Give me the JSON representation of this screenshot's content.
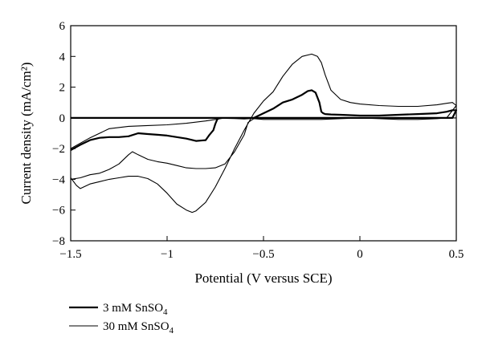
{
  "chart_data": {
    "type": "line",
    "title": "",
    "xlabel": "Potential (V versus SCE)",
    "ylabel": "Current density (mA/cm²)",
    "xlim": [
      -1.5,
      0.5
    ],
    "ylim": [
      -8,
      6
    ],
    "x_ticks": [
      -1.5,
      -1,
      -0.5,
      0,
      0.5
    ],
    "x_tick_labels": [
      "−1.5",
      "−1",
      "−0.5",
      "0",
      "0.5"
    ],
    "y_ticks": [
      -8,
      -6,
      -4,
      -2,
      0,
      2,
      4,
      6
    ],
    "y_tick_labels": [
      "−8",
      "−6",
      "−4",
      "−2",
      "0",
      "2",
      "4",
      "6"
    ],
    "grid": false,
    "legend_position": "bottom-left, below plot",
    "series": [
      {
        "name": "3 mM SnSO4",
        "legend_main": "3 mM SnSO",
        "legend_sub": "4",
        "line_width": "thick",
        "color": "#000000",
        "x": [
          -1.5,
          -1.45,
          -1.4,
          -1.35,
          -1.3,
          -1.25,
          -1.2,
          -1.15,
          -1.1,
          -1.05,
          -1.0,
          -0.95,
          -0.9,
          -0.85,
          -0.8,
          -0.78,
          -0.76,
          -0.75,
          -0.74,
          -0.73,
          -0.7,
          -0.65,
          -0.6,
          -0.55,
          -0.5,
          -0.45,
          -0.4,
          -0.35,
          -0.3,
          -0.27,
          -0.25,
          -0.23,
          -0.21,
          -0.2,
          -0.19,
          -0.18,
          -0.15,
          -0.1,
          0.0,
          0.1,
          0.2,
          0.3,
          0.4,
          0.45,
          0.48,
          0.5,
          0.48,
          0.4,
          0.3,
          0.2,
          0.0,
          -0.2,
          -0.4,
          -0.6,
          -0.8,
          -1.0,
          -1.2,
          -1.4,
          -1.5
        ],
        "y": [
          -2.1,
          -1.75,
          -1.45,
          -1.3,
          -1.25,
          -1.25,
          -1.2,
          -1.0,
          -1.05,
          -1.1,
          -1.15,
          -1.25,
          -1.35,
          -1.5,
          -1.45,
          -1.1,
          -0.8,
          -0.4,
          -0.1,
          0.0,
          0.0,
          -0.02,
          -0.04,
          0.0,
          0.3,
          0.6,
          1.0,
          1.2,
          1.5,
          1.75,
          1.8,
          1.65,
          1.0,
          0.4,
          0.3,
          0.25,
          0.22,
          0.2,
          0.15,
          0.15,
          0.2,
          0.25,
          0.3,
          0.4,
          0.5,
          0.5,
          0.0,
          0.0,
          0.0,
          0.0,
          0.0,
          0.0,
          0.0,
          0.0,
          0.0,
          0.0,
          0.0,
          0.0,
          0.0
        ]
      },
      {
        "name": "30 mM SnSO4",
        "legend_main": "30 mM SnSO",
        "legend_sub": "4",
        "line_width": "thin",
        "color": "#000000",
        "x": [
          -1.5,
          -1.47,
          -1.45,
          -1.4,
          -1.35,
          -1.3,
          -1.25,
          -1.2,
          -1.15,
          -1.1,
          -1.05,
          -1.0,
          -0.95,
          -0.9,
          -0.87,
          -0.85,
          -0.8,
          -0.75,
          -0.7,
          -0.65,
          -0.6,
          -0.55,
          -0.5,
          -0.45,
          -0.4,
          -0.35,
          -0.3,
          -0.25,
          -0.22,
          -0.2,
          -0.18,
          -0.15,
          -0.1,
          -0.05,
          0.0,
          0.1,
          0.2,
          0.3,
          0.4,
          0.45,
          0.48,
          0.5,
          0.45,
          0.4,
          0.3,
          0.2,
          0.1,
          0.0,
          -0.1,
          -0.2,
          -0.3,
          -0.4,
          -0.5,
          -0.55,
          -0.58,
          -0.6,
          -0.65,
          -0.7,
          -0.75,
          -0.8,
          -0.85,
          -0.9,
          -0.95,
          -1.0,
          -1.05,
          -1.1,
          -1.15,
          -1.18,
          -1.2,
          -1.25,
          -1.3,
          -1.35,
          -1.4,
          -1.45,
          -1.5
        ],
        "y": [
          -3.9,
          -4.4,
          -4.6,
          -4.3,
          -4.15,
          -4.0,
          -3.9,
          -3.8,
          -3.8,
          -3.95,
          -4.3,
          -4.9,
          -5.6,
          -6.0,
          -6.15,
          -6.05,
          -5.5,
          -4.5,
          -3.3,
          -2.0,
          -0.8,
          0.3,
          1.1,
          1.7,
          2.7,
          3.5,
          4.0,
          4.15,
          4.0,
          3.6,
          2.8,
          1.8,
          1.2,
          1.0,
          0.9,
          0.8,
          0.75,
          0.75,
          0.85,
          0.95,
          1.0,
          0.8,
          0.0,
          -0.05,
          -0.1,
          -0.1,
          -0.05,
          0.0,
          -0.05,
          -0.1,
          -0.1,
          -0.1,
          -0.1,
          -0.05,
          -0.3,
          -1.1,
          -2.2,
          -3.0,
          -3.25,
          -3.3,
          -3.3,
          -3.25,
          -3.1,
          -2.95,
          -2.85,
          -2.7,
          -2.4,
          -2.2,
          -2.4,
          -3.0,
          -3.35,
          -3.6,
          -3.7,
          -3.9,
          -4.0
        ]
      },
      {
        "name": "",
        "line_width": "thin",
        "color": "#000000",
        "x": [
          -1.5,
          0.5
        ],
        "y": [
          0.0,
          0.0
        ]
      },
      {
        "name": "",
        "line_width": "thin",
        "color": "#000000",
        "x": [
          -1.5,
          -1.4,
          -1.3,
          -1.2,
          -1.1,
          -1.0,
          -0.9,
          -0.8,
          -0.75,
          -0.7
        ],
        "y": [
          -2.0,
          -1.3,
          -0.7,
          -0.55,
          -0.5,
          -0.45,
          -0.35,
          -0.2,
          -0.1,
          0.0
        ]
      }
    ]
  }
}
